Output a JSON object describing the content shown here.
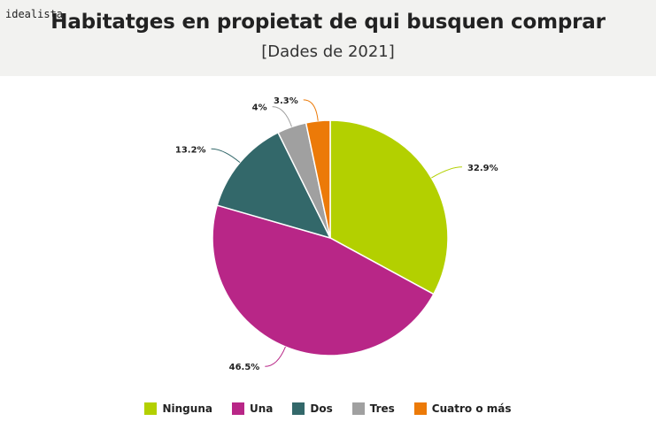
{
  "brand": "idealista",
  "title": "Habitatges en propietat de qui busquen comprar",
  "subtitle": "[Dades de 2021]",
  "chart_data": {
    "type": "pie",
    "categories": [
      "Ninguna",
      "Una",
      "Dos",
      "Tres",
      "Cuatro o más"
    ],
    "values": [
      32.9,
      46.5,
      13.2,
      4,
      3.3
    ],
    "labels": [
      "32.9%",
      "46.5%",
      "13.2%",
      "4%",
      "3.3%"
    ],
    "colors": [
      "#b3d000",
      "#b82687",
      "#33686a",
      "#a0a0a0",
      "#ec7a08"
    ],
    "legend_position": "bottom"
  }
}
